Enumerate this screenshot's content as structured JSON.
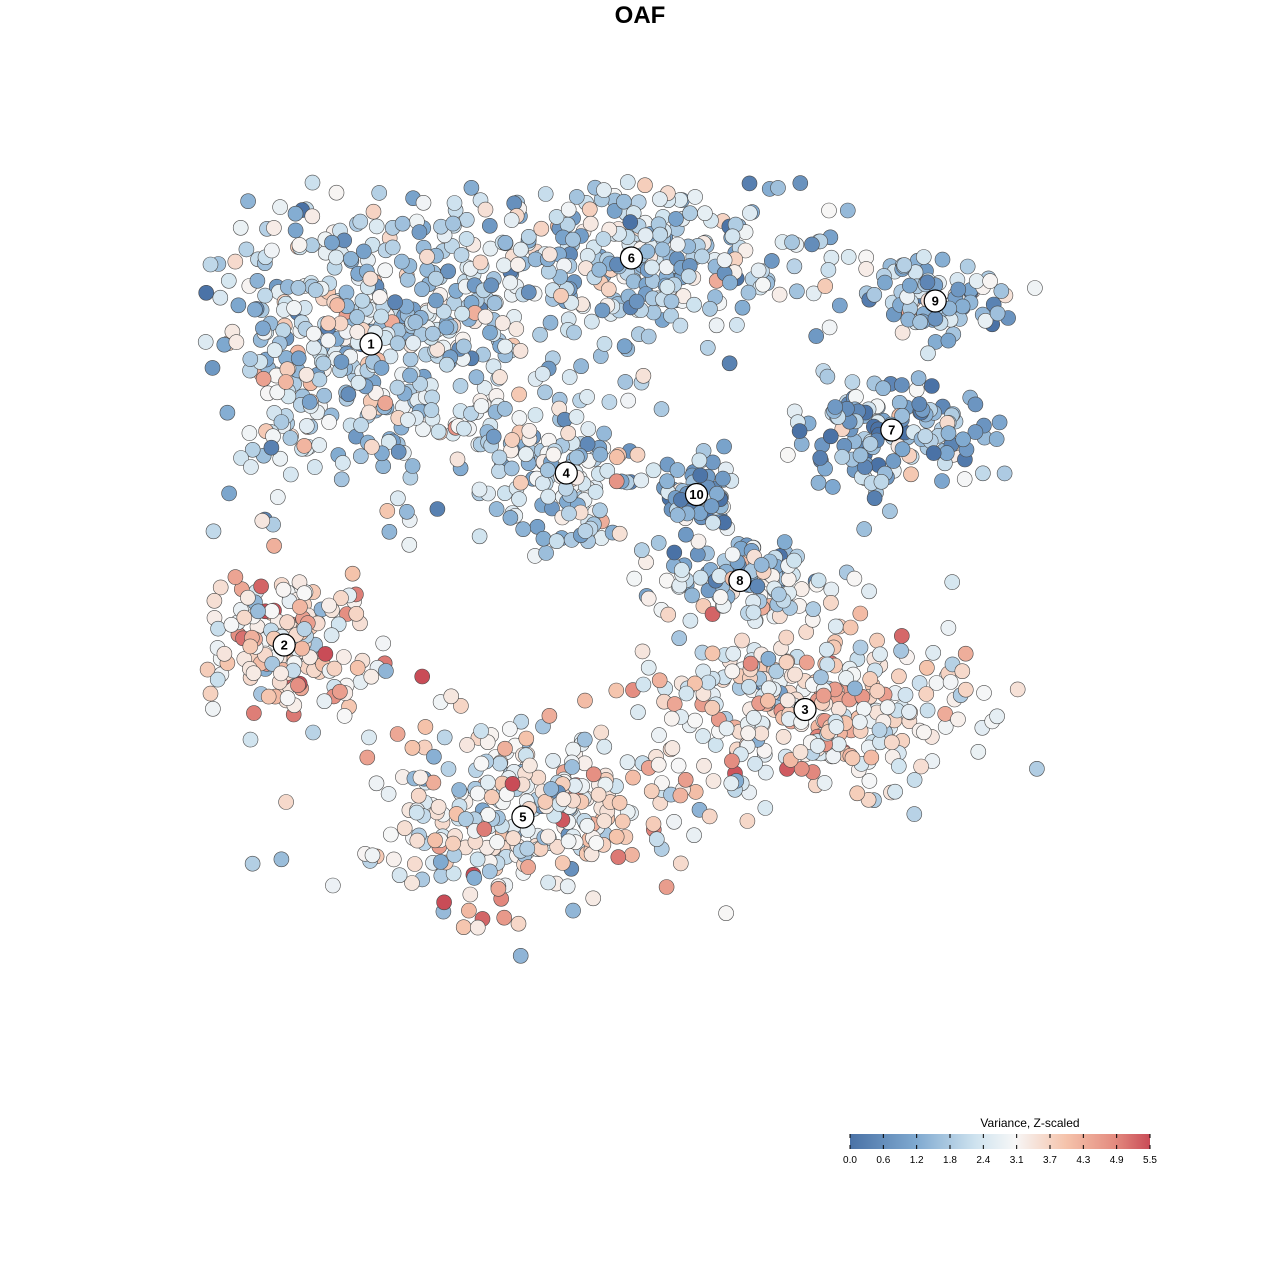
{
  "chart_data": {
    "type": "scatter",
    "title": "OAF",
    "xlabel": "",
    "ylabel": "",
    "grid": false,
    "legend": {
      "title": "Variance, Z-scaled",
      "placement": "bottom-right",
      "ticks": [
        "0.0",
        "0.6",
        "1.2",
        "1.8",
        "2.4",
        "3.1",
        "3.7",
        "4.3",
        "4.9",
        "5.5"
      ],
      "range": [
        0.0,
        5.5
      ]
    },
    "colors": {
      "low": "#4a72a6",
      "mid_low": "#8fbbd9",
      "mid": "#f7f7f7",
      "mid_high": "#f2b39a",
      "high": "#c94c57",
      "point_stroke": "#4a4a4a"
    },
    "clusters": [
      {
        "id": "1",
        "x": 0.0,
        "y": 0.0,
        "spread": [
          9,
          8
        ],
        "mean_value": 2.2
      },
      {
        "id": "2",
        "x": -4.0,
        "y": -14.0,
        "spread": [
          5,
          4
        ],
        "mean_value": 3.4
      },
      {
        "id": "3",
        "x": 20.0,
        "y": -17.0,
        "spread": [
          9,
          5
        ],
        "mean_value": 3.2
      },
      {
        "id": "4",
        "x": 9.0,
        "y": -6.0,
        "spread": [
          4,
          4
        ],
        "mean_value": 2.2
      },
      {
        "id": "5",
        "x": 7.0,
        "y": -22.0,
        "spread": [
          8,
          5
        ],
        "mean_value": 3.0
      },
      {
        "id": "6",
        "x": 12.0,
        "y": 4.0,
        "spread": [
          10,
          4
        ],
        "mean_value": 2.1
      },
      {
        "id": "7",
        "x": 24.0,
        "y": -4.0,
        "spread": [
          5,
          3
        ],
        "mean_value": 1.6
      },
      {
        "id": "8",
        "x": 17.0,
        "y": -11.0,
        "spread": [
          5,
          2
        ],
        "mean_value": 2.0
      },
      {
        "id": "9",
        "x": 26.0,
        "y": 2.0,
        "spread": [
          4,
          2
        ],
        "mean_value": 1.9
      },
      {
        "id": "10",
        "x": 15.0,
        "y": -7.0,
        "spread": [
          2,
          2
        ],
        "mean_value": 1.4
      }
    ]
  }
}
